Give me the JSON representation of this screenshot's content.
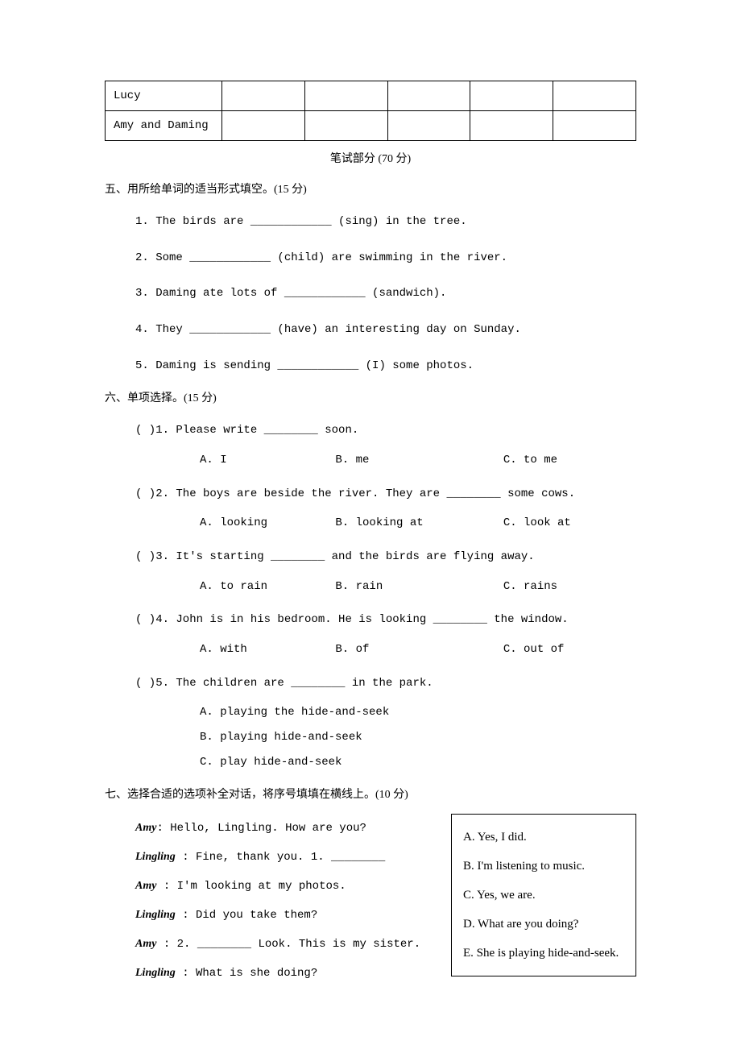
{
  "table": {
    "rows": [
      {
        "cells": [
          "Lucy",
          "",
          "",
          "",
          "",
          ""
        ]
      },
      {
        "cells": [
          "Amy and Daming",
          "",
          "",
          "",
          "",
          ""
        ]
      }
    ]
  },
  "written_part_title": "笔试部分 (70 分)",
  "section5": {
    "heading": "五、用所给单词的适当形式填空。(15 分)",
    "questions": [
      "1. The birds are ____________ (sing) in the tree.",
      "2. Some ____________ (child) are swimming in the river.",
      "3. Daming ate lots of ____________ (sandwich).",
      "4. They ____________ (have) an interesting day on Sunday.",
      "5. Daming is sending ____________ (I) some photos."
    ]
  },
  "section6": {
    "heading": "六、单项选择。(15 分)",
    "questions": [
      {
        "stem": "(    )1. Please write ________ soon.",
        "options": [
          "A. I",
          "B. me",
          "C. to me"
        ]
      },
      {
        "stem": "(    )2. The boys are beside the river. They are ________ some cows.",
        "options": [
          "A. looking",
          "B. looking at",
          "C. look at"
        ]
      },
      {
        "stem": "(    )3. It's starting ________ and the birds are flying away.",
        "options": [
          "A. to rain",
          "B. rain",
          "C. rains"
        ]
      },
      {
        "stem": "(    )4. John is in his bedroom. He is looking ________ the window.",
        "options": [
          "A. with",
          "B. of",
          "C. out of"
        ]
      },
      {
        "stem": "(    )5. The children are ________ in the park.",
        "options_vertical": [
          "A. playing the hide-and-seek",
          "B. playing hide-and-seek",
          "C. play hide-and-seek"
        ]
      }
    ]
  },
  "section7": {
    "heading": "七、选择合适的选项补全对话，将序号填填在横线上。(10 分)",
    "dialog": [
      {
        "speaker": "Amy",
        "text": ": Hello, Lingling. How are you?"
      },
      {
        "speaker": "Lingling",
        "text": " : Fine, thank you. 1. ________"
      },
      {
        "speaker": "Amy",
        "text": " : I'm looking at my photos."
      },
      {
        "speaker": "Lingling",
        "text": " : Did you take them?"
      },
      {
        "speaker": "Amy",
        "text": " : 2. ________ Look. This is my sister."
      },
      {
        "speaker": "Lingling",
        "text": " : What is she doing?"
      }
    ],
    "box_options": [
      "A. Yes, I did.",
      "B. I'm listening to music.",
      "C. Yes, we are.",
      "D. What are you doing?",
      "E. She is playing hide-and-seek."
    ]
  }
}
